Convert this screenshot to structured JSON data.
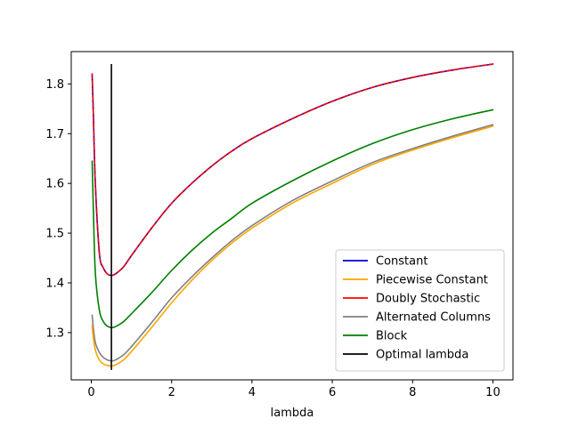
{
  "chart_data": {
    "type": "line",
    "xlabel": "lambda",
    "ylabel": "",
    "title": "",
    "xlim": [
      -0.5,
      10.5
    ],
    "ylim": [
      1.205,
      1.865
    ],
    "xticks": [
      0,
      2,
      4,
      6,
      8,
      10
    ],
    "yticks": [
      1.3,
      1.4,
      1.5,
      1.6,
      1.7,
      1.8
    ],
    "xtick_labels": [
      "0",
      "2",
      "4",
      "6",
      "8",
      "10"
    ],
    "ytick_labels": [
      "1.3",
      "1.4",
      "1.5",
      "1.6",
      "1.7",
      "1.8"
    ],
    "grid": false,
    "legend_position": "bottom-right",
    "series": [
      {
        "name": "Constant",
        "color": "#0000cc",
        "dashed": false,
        "x": [
          0.02,
          0.05,
          0.1,
          0.2,
          0.3,
          0.4,
          0.5,
          0.6,
          0.8,
          1.0,
          1.5,
          2.0,
          2.5,
          3.0,
          3.5,
          4.0,
          5.0,
          6.0,
          7.0,
          8.0,
          9.0,
          10.0
        ],
        "y": [
          1.82,
          1.74,
          1.6,
          1.46,
          1.43,
          1.418,
          1.415,
          1.418,
          1.432,
          1.455,
          1.51,
          1.56,
          1.6,
          1.635,
          1.665,
          1.69,
          1.73,
          1.765,
          1.793,
          1.813,
          1.828,
          1.84
        ]
      },
      {
        "name": "Piecewise Constant",
        "color": "#ffa500",
        "dashed": false,
        "x": [
          0.02,
          0.05,
          0.1,
          0.2,
          0.3,
          0.4,
          0.5,
          0.6,
          0.8,
          1.0,
          1.5,
          2.0,
          2.5,
          3.0,
          3.5,
          4.0,
          5.0,
          6.0,
          7.0,
          8.0,
          9.0,
          10.0
        ],
        "y": [
          1.315,
          1.29,
          1.265,
          1.245,
          1.237,
          1.234,
          1.233,
          1.235,
          1.245,
          1.262,
          1.31,
          1.36,
          1.405,
          1.445,
          1.48,
          1.51,
          1.56,
          1.6,
          1.638,
          1.667,
          1.692,
          1.715
        ]
      },
      {
        "name": "Doubly Stochastic",
        "color": "#ff0000",
        "dashed": true,
        "x": [
          0.02,
          0.05,
          0.1,
          0.2,
          0.3,
          0.4,
          0.5,
          0.6,
          0.8,
          1.0,
          1.5,
          2.0,
          2.5,
          3.0,
          3.5,
          4.0,
          5.0,
          6.0,
          7.0,
          8.0,
          9.0,
          10.0
        ],
        "y": [
          1.82,
          1.74,
          1.6,
          1.46,
          1.43,
          1.418,
          1.415,
          1.418,
          1.432,
          1.455,
          1.51,
          1.56,
          1.6,
          1.635,
          1.665,
          1.69,
          1.73,
          1.765,
          1.793,
          1.813,
          1.828,
          1.84
        ]
      },
      {
        "name": "Alternated Columns",
        "color": "#808080",
        "dashed": false,
        "x": [
          0.02,
          0.05,
          0.1,
          0.2,
          0.3,
          0.4,
          0.5,
          0.6,
          0.8,
          1.0,
          1.5,
          2.0,
          2.5,
          3.0,
          3.5,
          4.0,
          5.0,
          6.0,
          7.0,
          8.0,
          9.0,
          10.0
        ],
        "y": [
          1.335,
          1.31,
          1.28,
          1.26,
          1.25,
          1.245,
          1.243,
          1.245,
          1.255,
          1.272,
          1.32,
          1.37,
          1.412,
          1.45,
          1.485,
          1.515,
          1.565,
          1.605,
          1.642,
          1.67,
          1.695,
          1.718
        ]
      },
      {
        "name": "Block",
        "color": "#008000",
        "dashed": false,
        "x": [
          0.02,
          0.05,
          0.1,
          0.2,
          0.3,
          0.4,
          0.5,
          0.6,
          0.8,
          1.0,
          1.5,
          2.0,
          2.5,
          3.0,
          3.5,
          4.0,
          5.0,
          6.0,
          7.0,
          8.0,
          9.0,
          10.0
        ],
        "y": [
          1.645,
          1.55,
          1.42,
          1.345,
          1.322,
          1.313,
          1.31,
          1.312,
          1.322,
          1.338,
          1.38,
          1.425,
          1.465,
          1.5,
          1.53,
          1.56,
          1.605,
          1.645,
          1.68,
          1.708,
          1.73,
          1.748
        ]
      }
    ],
    "vline": {
      "name": "Optimal lambda",
      "color": "#000000",
      "x": 0.5,
      "ymin": 1.225,
      "ymax": 1.84
    }
  }
}
